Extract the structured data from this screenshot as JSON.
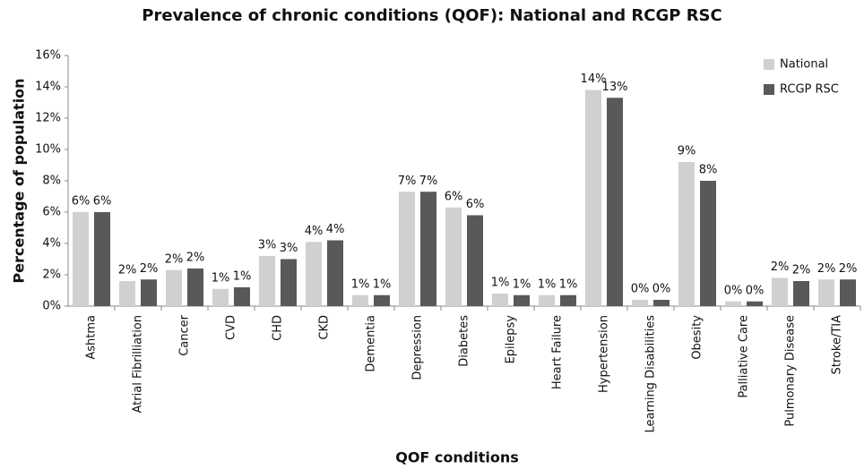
{
  "chart_data": {
    "type": "bar",
    "title": "Prevalence of chronic conditions (QOF): National and RCGP RSC",
    "x_label": "QOF conditions",
    "y_label": "Percentage of population",
    "categories": [
      "Ashtma",
      "Atrial Fibrilliation",
      "Cancer",
      "CVD",
      "CHD",
      "CKD",
      "Dementia",
      "Depression",
      "Diabetes",
      "Epilepsy",
      "Heart Failure",
      "Hypertension",
      "Learning Disabilities",
      "Obesity",
      "Palliative Care",
      "Pulmonary Disease",
      "Stroke/TIA"
    ],
    "series": [
      {
        "name": "National",
        "color": "#d0d0d0",
        "values": [
          6.0,
          1.6,
          2.3,
          1.1,
          3.2,
          4.1,
          0.7,
          7.3,
          6.3,
          0.8,
          0.7,
          13.8,
          0.4,
          9.2,
          0.3,
          1.8,
          1.7
        ],
        "value_labels": [
          "6%",
          "2%",
          "2%",
          "1%",
          "3%",
          "4%",
          "1%",
          "7%",
          "6%",
          "1%",
          "1%",
          "14%",
          "0%",
          "9%",
          "0%",
          "2%",
          "2%"
        ]
      },
      {
        "name": "RCGP RSC",
        "color": "#595959",
        "values": [
          6.0,
          1.7,
          2.4,
          1.2,
          3.0,
          4.2,
          0.7,
          7.3,
          5.8,
          0.7,
          0.7,
          13.3,
          0.4,
          8.0,
          0.3,
          1.6,
          1.7
        ],
        "value_labels": [
          "6%",
          "2%",
          "2%",
          "1%",
          "3%",
          "4%",
          "1%",
          "7%",
          "6%",
          "1%",
          "1%",
          "13%",
          "0%",
          "8%",
          "0%",
          "2%",
          "2%"
        ]
      }
    ],
    "ylim": [
      0,
      16
    ],
    "yticks": [
      {
        "value": 0,
        "label": "0%"
      },
      {
        "value": 2,
        "label": "2%"
      },
      {
        "value": 4,
        "label": "4%"
      },
      {
        "value": 6,
        "label": "6%"
      },
      {
        "value": 8,
        "label": "8%"
      },
      {
        "value": 10,
        "label": "10%"
      },
      {
        "value": 12,
        "label": "12%"
      },
      {
        "value": 14,
        "label": "14%"
      },
      {
        "value": 16,
        "label": "16%"
      }
    ],
    "grid": false,
    "legend": "top-right"
  }
}
